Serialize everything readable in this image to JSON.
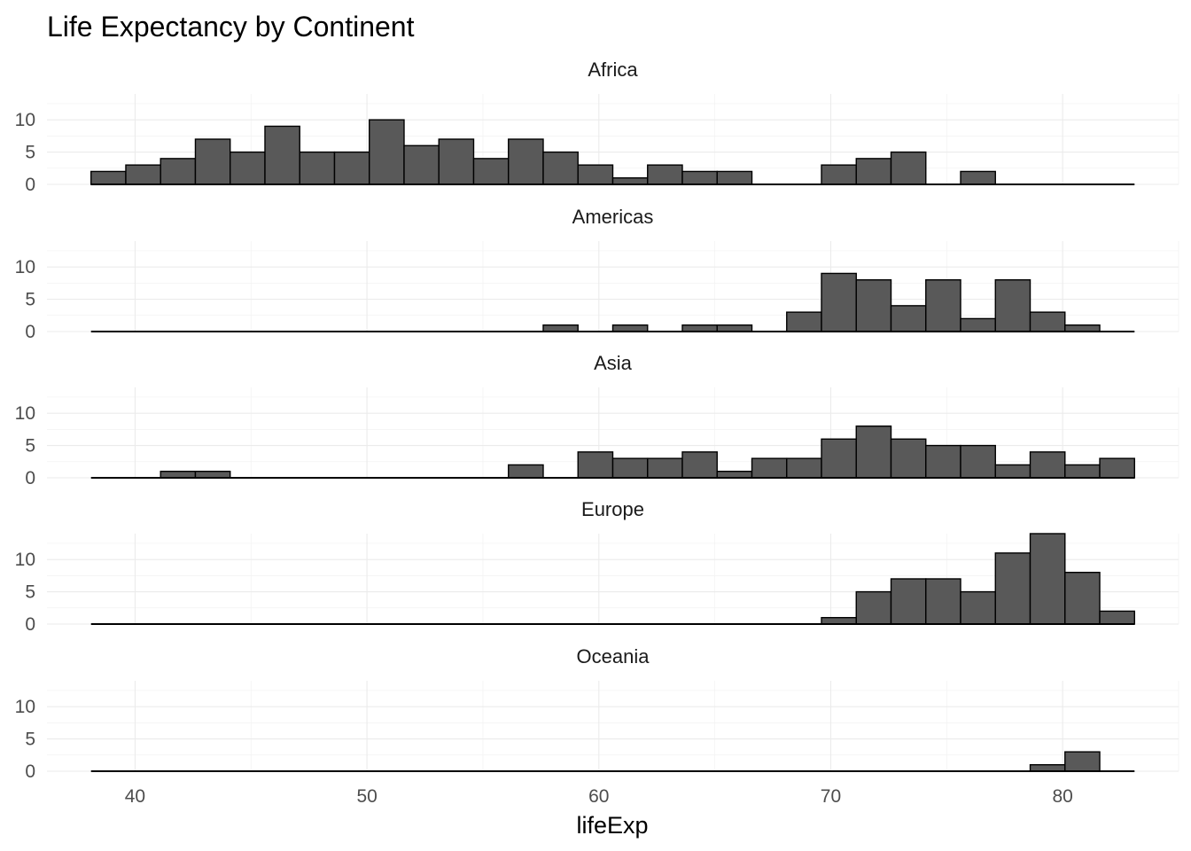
{
  "chart_data": {
    "type": "bar",
    "title": "Life Expectancy by Continent",
    "xlabel": "lifeExp",
    "ylabel": "",
    "grid": true,
    "legend": "none",
    "colors": {
      "fill": "#595959",
      "outline": "#000000",
      "grid": "#ebebeb"
    },
    "xlim": [
      36.2,
      85.0
    ],
    "ylim": [
      0,
      14
    ],
    "x_ticks": [
      40,
      50,
      60,
      70,
      80
    ],
    "y_ticks": [
      0,
      5,
      10
    ],
    "bin_edges": [
      38.1,
      39.6,
      41.1,
      42.6,
      44.1,
      45.6,
      47.1,
      48.6,
      50.1,
      51.6,
      53.1,
      54.6,
      56.1,
      57.6,
      59.1,
      60.6,
      62.1,
      63.6,
      65.1,
      66.6,
      68.1,
      69.6,
      71.1,
      72.6,
      74.1,
      75.6,
      77.1,
      78.6,
      80.1,
      81.6,
      83.1
    ],
    "panels": [
      {
        "name": "Africa",
        "counts": [
          2,
          3,
          4,
          7,
          5,
          9,
          5,
          5,
          10,
          6,
          7,
          4,
          7,
          5,
          3,
          1,
          3,
          2,
          2,
          0,
          0,
          3,
          4,
          5,
          0,
          2,
          0,
          0,
          0,
          0
        ]
      },
      {
        "name": "Americas",
        "counts": [
          0,
          0,
          0,
          0,
          0,
          0,
          0,
          0,
          0,
          0,
          0,
          0,
          0,
          1,
          0,
          1,
          0,
          1,
          1,
          0,
          3,
          9,
          8,
          4,
          8,
          2,
          8,
          3,
          1,
          0
        ]
      },
      {
        "name": "Asia",
        "counts": [
          0,
          0,
          1,
          1,
          0,
          0,
          0,
          0,
          0,
          0,
          0,
          0,
          2,
          0,
          4,
          3,
          3,
          4,
          1,
          3,
          3,
          6,
          8,
          6,
          5,
          5,
          2,
          4,
          2,
          3
        ]
      },
      {
        "name": "Europe",
        "counts": [
          0,
          0,
          0,
          0,
          0,
          0,
          0,
          0,
          0,
          0,
          0,
          0,
          0,
          0,
          0,
          0,
          0,
          0,
          0,
          0,
          0,
          1,
          5,
          7,
          7,
          5,
          11,
          14,
          8,
          2
        ]
      },
      {
        "name": "Oceania",
        "counts": [
          0,
          0,
          0,
          0,
          0,
          0,
          0,
          0,
          0,
          0,
          0,
          0,
          0,
          0,
          0,
          0,
          0,
          0,
          0,
          0,
          0,
          0,
          0,
          0,
          0,
          0,
          0,
          1,
          3,
          0
        ]
      }
    ]
  }
}
